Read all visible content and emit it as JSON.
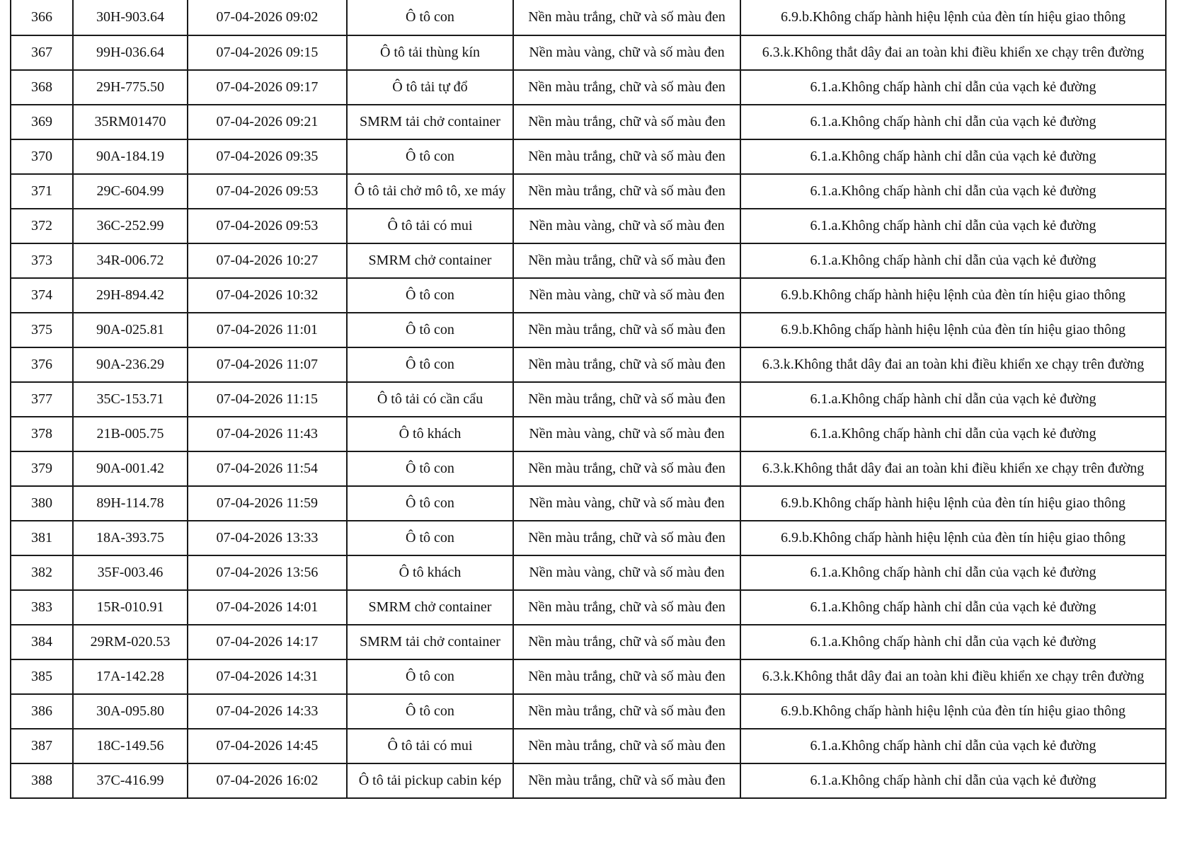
{
  "rows": [
    [
      "366",
      "30H-903.64",
      "07-04-2026 09:02",
      "Ô tô con",
      "Nền màu trắng, chữ và số màu đen",
      "6.9.b.Không chấp hành hiệu lệnh của đèn tín hiệu giao thông"
    ],
    [
      "367",
      "99H-036.64",
      "07-04-2026 09:15",
      "Ô tô tải thùng kín",
      "Nền màu vàng, chữ và số màu đen",
      "6.3.k.Không thắt dây đai an toàn khi điều khiển xe chạy trên đường"
    ],
    [
      "368",
      "29H-775.50",
      "07-04-2026 09:17",
      "Ô tô tải tự đổ",
      "Nền màu trắng, chữ và số màu đen",
      "6.1.a.Không chấp hành chỉ dẫn của vạch kẻ đường"
    ],
    [
      "369",
      "35RM01470",
      "07-04-2026 09:21",
      "SMRM tải chở container",
      "Nền màu trắng, chữ và số màu đen",
      "6.1.a.Không chấp hành chỉ dẫn của vạch kẻ đường"
    ],
    [
      "370",
      "90A-184.19",
      "07-04-2026 09:35",
      "Ô tô con",
      "Nền màu trắng, chữ và số màu đen",
      "6.1.a.Không chấp hành chỉ dẫn của vạch kẻ đường"
    ],
    [
      "371",
      "29C-604.99",
      "07-04-2026 09:53",
      "Ô tô tải chở mô tô, xe máy",
      "Nền màu trắng, chữ và số màu đen",
      "6.1.a.Không chấp hành chỉ dẫn của vạch kẻ đường"
    ],
    [
      "372",
      "36C-252.99",
      "07-04-2026 09:53",
      "Ô tô tải có mui",
      "Nền màu vàng, chữ và số màu đen",
      "6.1.a.Không chấp hành chỉ dẫn của vạch kẻ đường"
    ],
    [
      "373",
      "34R-006.72",
      "07-04-2026 10:27",
      "SMRM chở container",
      "Nền màu trắng, chữ và số màu đen",
      "6.1.a.Không chấp hành chỉ dẫn của vạch kẻ đường"
    ],
    [
      "374",
      "29H-894.42",
      "07-04-2026 10:32",
      "Ô tô con",
      "Nền màu vàng, chữ và số màu đen",
      "6.9.b.Không chấp hành hiệu lệnh của đèn tín hiệu giao thông"
    ],
    [
      "375",
      "90A-025.81",
      "07-04-2026 11:01",
      "Ô tô con",
      "Nền màu trắng, chữ và số màu đen",
      "6.9.b.Không chấp hành hiệu lệnh của đèn tín hiệu giao thông"
    ],
    [
      "376",
      "90A-236.29",
      "07-04-2026 11:07",
      "Ô tô con",
      "Nền màu trắng, chữ và số màu đen",
      "6.3.k.Không thắt dây đai an toàn khi điều khiển xe chạy trên đường"
    ],
    [
      "377",
      "35C-153.71",
      "07-04-2026 11:15",
      "Ô tô tải có cần cẩu",
      "Nền màu trắng, chữ và số màu đen",
      "6.1.a.Không chấp hành chỉ dẫn của vạch kẻ đường"
    ],
    [
      "378",
      "21B-005.75",
      "07-04-2026 11:43",
      "Ô tô khách",
      "Nền màu vàng, chữ và số màu đen",
      "6.1.a.Không chấp hành chỉ dẫn của vạch kẻ đường"
    ],
    [
      "379",
      "90A-001.42",
      "07-04-2026 11:54",
      "Ô tô con",
      "Nền màu trắng, chữ và số màu đen",
      "6.3.k.Không thắt dây đai an toàn khi điều khiển xe chạy trên đường"
    ],
    [
      "380",
      "89H-114.78",
      "07-04-2026 11:59",
      "Ô tô con",
      "Nền màu vàng, chữ và số màu đen",
      "6.9.b.Không chấp hành hiệu lệnh của đèn tín hiệu giao thông"
    ],
    [
      "381",
      "18A-393.75",
      "07-04-2026 13:33",
      "Ô tô con",
      "Nền màu trắng, chữ và số màu đen",
      "6.9.b.Không chấp hành hiệu lệnh của đèn tín hiệu giao thông"
    ],
    [
      "382",
      "35F-003.46",
      "07-04-2026 13:56",
      "Ô tô khách",
      "Nền màu vàng, chữ và số màu đen",
      "6.1.a.Không chấp hành chỉ dẫn của vạch kẻ đường"
    ],
    [
      "383",
      "15R-010.91",
      "07-04-2026 14:01",
      "SMRM chở container",
      "Nền màu trắng, chữ và số màu đen",
      "6.1.a.Không chấp hành chỉ dẫn của vạch kẻ đường"
    ],
    [
      "384",
      "29RM-020.53",
      "07-04-2026 14:17",
      "SMRM tải chở container",
      "Nền màu trắng, chữ và số màu đen",
      "6.1.a.Không chấp hành chỉ dẫn của vạch kẻ đường"
    ],
    [
      "385",
      "17A-142.28",
      "07-04-2026 14:31",
      "Ô tô con",
      "Nền màu trắng, chữ và số màu đen",
      "6.3.k.Không thắt dây đai an toàn khi điều khiển xe chạy trên đường"
    ],
    [
      "386",
      "30A-095.80",
      "07-04-2026 14:33",
      "Ô tô con",
      "Nền màu trắng, chữ và số màu đen",
      "6.9.b.Không chấp hành hiệu lệnh của đèn tín hiệu giao thông"
    ],
    [
      "387",
      "18C-149.56",
      "07-04-2026 14:45",
      "Ô tô tải có mui",
      "Nền màu trắng, chữ và số màu đen",
      "6.1.a.Không chấp hành chỉ dẫn của vạch kẻ đường"
    ],
    [
      "388",
      "37C-416.99",
      "07-04-2026 16:02",
      "Ô tô tải pickup cabin kép",
      "Nền màu trắng, chữ và số màu đen",
      "6.1.a.Không chấp hành chỉ dẫn của vạch kẻ đường"
    ]
  ]
}
